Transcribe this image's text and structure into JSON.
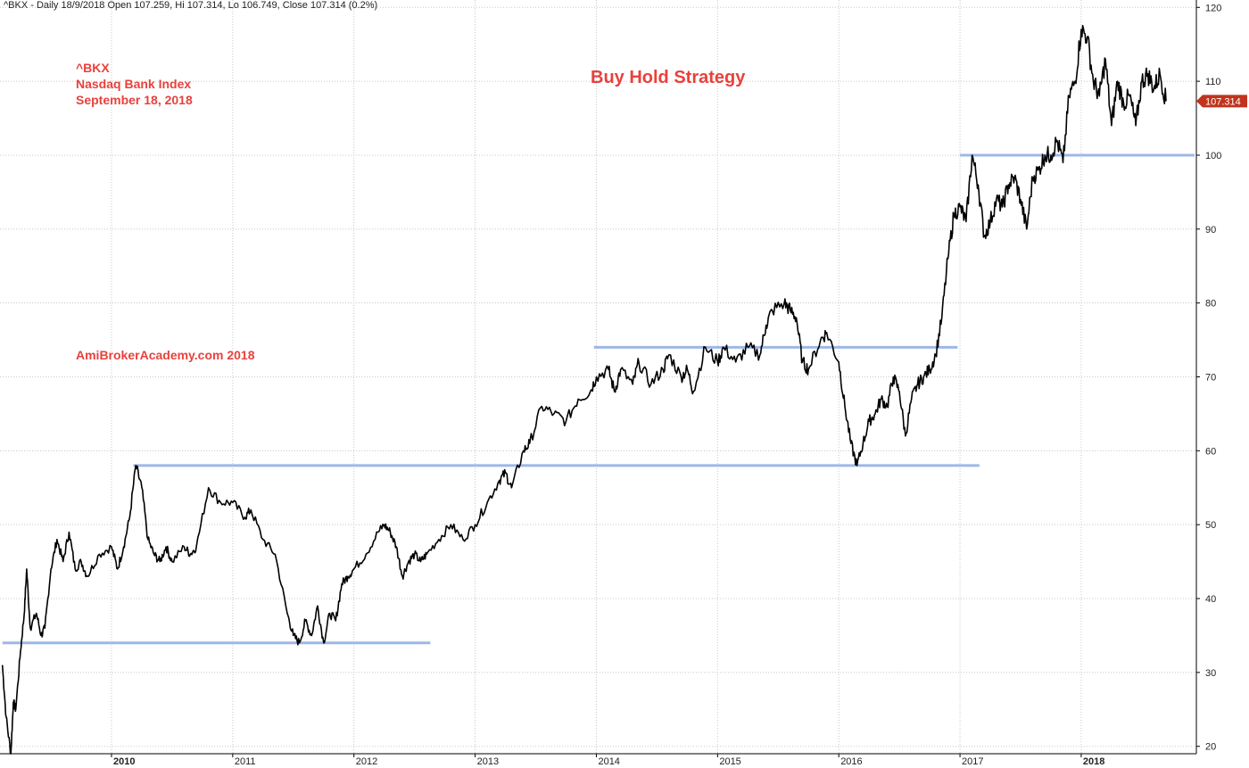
{
  "header": {
    "text": "^BKX - Daily 18/9/2018 Open 107.259, Hi 107.314, Lo 106.749, Close 107.314 (0.2%)"
  },
  "annotations": {
    "symbol": "^BKX",
    "name": "Nasdaq Bank Index",
    "date": "September 18, 2018",
    "site": "AmiBrokerAcademy.com  2018"
  },
  "colors": {
    "annotation": "#e8413c",
    "price_line": "#000000",
    "support_line": "#9db8e6",
    "last_price_bg": "#c0341d",
    "grid": "#c8c8c8"
  },
  "chart_data": {
    "type": "line",
    "title": "Buy Hold Strategy",
    "xlabel": "",
    "ylabel": "",
    "x_ticks": [
      "2010",
      "2011",
      "2012",
      "2013",
      "2014",
      "2015",
      "2016",
      "2017",
      "2018"
    ],
    "bold_x_ticks": [
      "2010",
      "2018"
    ],
    "y_ticks": [
      20,
      30,
      40,
      50,
      60,
      70,
      80,
      90,
      100,
      110,
      120
    ],
    "xlim": [
      2009.08,
      2018.95
    ],
    "ylim": [
      19,
      121
    ],
    "axis_side": "right",
    "grid": true,
    "last_value": 107.314,
    "last_value_label": "107.314",
    "series": [
      {
        "x": [
          2009.1,
          2009.13,
          2009.17,
          2009.19,
          2009.21,
          2009.25,
          2009.28,
          2009.3,
          2009.33,
          2009.38,
          2009.42,
          2009.45,
          2009.5,
          2009.55,
          2009.6,
          2009.65,
          2009.7,
          2009.75,
          2009.8,
          2009.9,
          2010.0,
          2010.05,
          2010.1,
          2010.15,
          2010.2,
          2010.25,
          2010.3,
          2010.35,
          2010.4,
          2010.45,
          2010.5,
          2010.6,
          2010.65,
          2010.7,
          2010.8,
          2010.9,
          2011.0,
          2011.1,
          2011.15,
          2011.25,
          2011.35,
          2011.45,
          2011.5,
          2011.55,
          2011.6,
          2011.65,
          2011.7,
          2011.75,
          2011.8,
          2011.85,
          2011.9,
          2011.95,
          2012.0,
          2012.1,
          2012.2,
          2012.25,
          2012.3,
          2012.35,
          2012.4,
          2012.45,
          2012.5,
          2012.55,
          2012.6,
          2012.7,
          2012.8,
          2012.9,
          2013.0,
          2013.1,
          2013.2,
          2013.25,
          2013.3,
          2013.4,
          2013.45,
          2013.55,
          2013.65,
          2013.75,
          2013.85,
          2013.95,
          2014.0,
          2014.1,
          2014.15,
          2014.2,
          2014.3,
          2014.35,
          2014.45,
          2014.55,
          2014.6,
          2014.7,
          2014.75,
          2014.8,
          2014.9,
          2015.0,
          2015.05,
          2015.15,
          2015.25,
          2015.35,
          2015.4,
          2015.45,
          2015.55,
          2015.6,
          2015.65,
          2015.7,
          2015.75,
          2015.85,
          2015.9,
          2016.0,
          2016.05,
          2016.1,
          2016.15,
          2016.2,
          2016.25,
          2016.3,
          2016.35,
          2016.4,
          2016.45,
          2016.5,
          2016.55,
          2016.6,
          2016.65,
          2016.7,
          2016.75,
          2016.8,
          2016.85,
          2016.9,
          2016.95,
          2017.0,
          2017.05,
          2017.1,
          2017.15,
          2017.2,
          2017.25,
          2017.3,
          2017.35,
          2017.4,
          2017.45,
          2017.5,
          2017.55,
          2017.6,
          2017.65,
          2017.7,
          2017.75,
          2017.8,
          2017.85,
          2017.9,
          2017.95,
          2018.0,
          2018.05,
          2018.1,
          2018.15,
          2018.2,
          2018.25,
          2018.3,
          2018.35,
          2018.4,
          2018.45,
          2018.5,
          2018.55,
          2018.6,
          2018.65,
          2018.7
        ],
        "values": [
          31,
          24,
          19,
          26,
          25,
          33,
          38,
          44,
          36,
          38,
          35,
          36,
          44,
          48,
          45,
          49,
          44,
          45,
          43,
          46,
          47,
          44,
          47,
          51,
          58,
          55,
          48,
          46,
          45,
          47,
          45,
          47,
          46,
          47,
          55,
          53,
          53,
          51,
          52,
          48,
          46,
          38,
          35,
          34,
          37,
          35,
          39,
          34,
          38,
          37,
          42,
          43,
          44,
          46,
          49,
          50,
          49,
          47,
          43,
          45,
          46,
          45,
          46,
          48,
          50,
          48,
          50,
          53,
          56,
          57,
          55,
          60,
          61,
          66,
          65,
          64,
          67,
          68,
          70,
          71,
          68,
          71,
          69,
          72,
          69,
          71,
          73,
          70,
          71,
          68,
          74,
          72,
          74,
          72,
          74,
          73,
          77,
          79,
          80,
          79,
          78,
          72,
          71,
          75,
          76,
          72,
          66,
          61,
          58,
          61,
          64,
          65,
          67,
          66,
          70,
          68,
          62,
          67,
          69,
          70,
          71,
          73,
          78,
          86,
          92,
          93,
          91,
          100,
          96,
          89,
          91,
          94,
          93,
          96,
          97,
          94,
          90,
          97,
          98,
          100,
          100,
          102,
          99,
          108,
          110,
          117,
          116,
          110,
          108,
          113,
          104,
          110,
          107,
          108,
          104,
          110,
          111,
          109,
          111,
          107.3
        ]
      }
    ],
    "support_lines": [
      {
        "y": 34,
        "x_from": 2009.1,
        "x_to": 2012.63
      },
      {
        "y": 58,
        "x_from": 2010.18,
        "x_to": 2017.16
      },
      {
        "y": 74,
        "x_from": 2013.98,
        "x_to": 2016.98
      },
      {
        "y": 100,
        "x_from": 2017.0,
        "x_to": 2018.95
      }
    ]
  }
}
